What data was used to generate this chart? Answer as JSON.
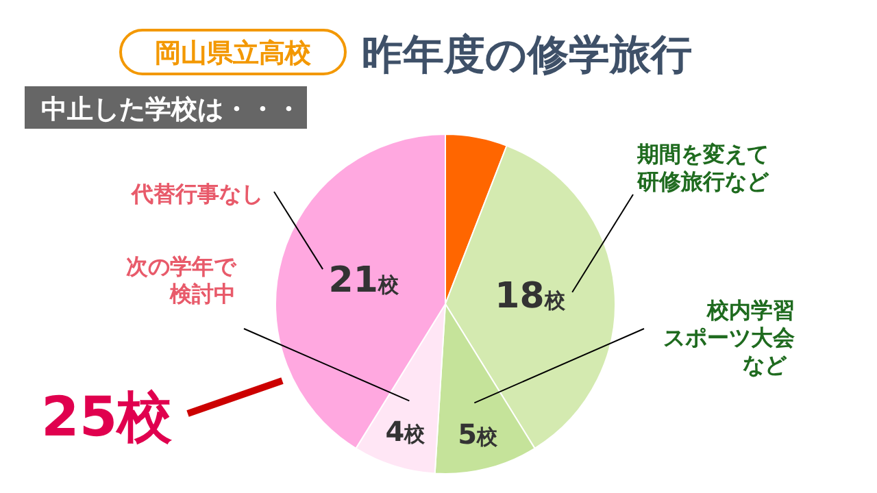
{
  "chart_data": {
    "type": "pie",
    "title": "昨年度の修学旅行",
    "subtitle": "中止した学校は・・・",
    "annotations": [
      "岡山県立高校",
      "25校"
    ],
    "categories": [
      null,
      "期間を変えて研修旅行など",
      "校内学習スポーツ大会など",
      "次の学年で検討中",
      "代替行事なし"
    ],
    "values": [
      3,
      18,
      5,
      4,
      21
    ],
    "value_labels": [
      null,
      "18校",
      "5校",
      "4校",
      "21校"
    ],
    "colors": [
      "#ff6600",
      "#d4eab0",
      "#c5e39a",
      "#ffe6f5",
      "#ffa8e0"
    ]
  }
}
